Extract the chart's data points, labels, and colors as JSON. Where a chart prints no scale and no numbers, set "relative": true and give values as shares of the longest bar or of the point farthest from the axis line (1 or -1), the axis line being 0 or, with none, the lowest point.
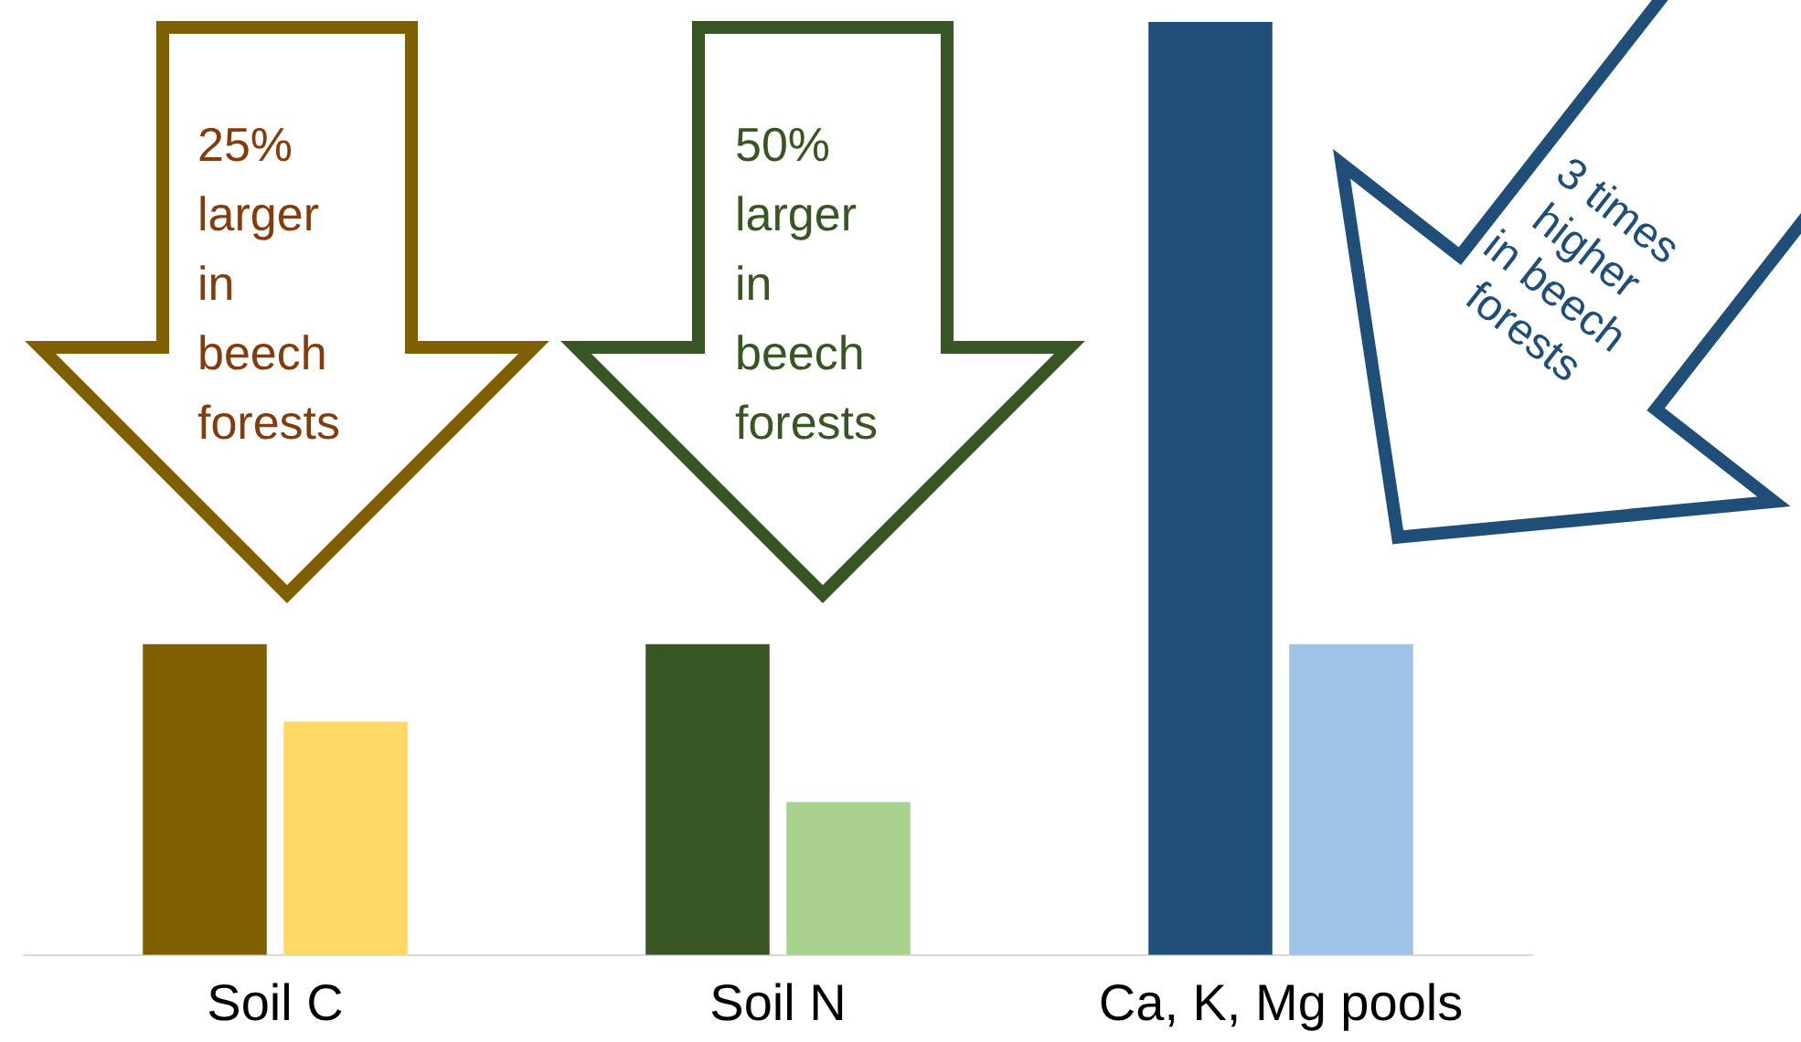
{
  "chart_data": {
    "type": "bar",
    "relative": true,
    "categories": [
      "Soil C",
      "Soil N",
      "Ca, K, Mg pools"
    ],
    "series": [
      {
        "colors": [
          "#7f5f00",
          "#375623",
          "#1f4e79"
        ],
        "values": [
          0.333,
          0.333,
          1
        ]
      },
      {
        "colors": [
          "#ffd966",
          "#a9d18e",
          "#9dc3e6"
        ],
        "values": [
          0.25,
          0.164,
          0.333
        ]
      }
    ],
    "annotations": [
      "25% larger in beech forests",
      "50% larger in beech forests",
      "3 times higher in beech forests"
    ],
    "legend": false
  }
}
